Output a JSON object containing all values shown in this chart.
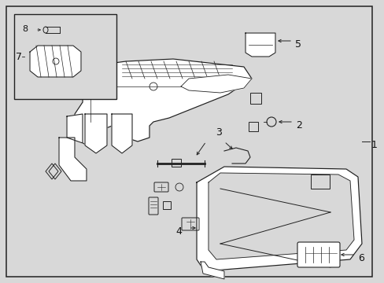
{
  "bg_color": "#d8d8d8",
  "border_color": "#222222",
  "line_color": "#222222",
  "text_color": "#111111",
  "fig_width": 4.89,
  "fig_height": 3.6,
  "dpi": 100
}
